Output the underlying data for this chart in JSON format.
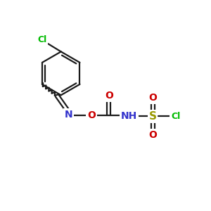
{
  "bg_color": "#ffffff",
  "bond_color": "#1a1a1a",
  "atom_colors": {
    "Cl": "#00bb00",
    "N": "#3333cc",
    "O": "#cc0000",
    "S": "#999900",
    "C": "#1a1a1a",
    "H": "#1a1a1a"
  },
  "figsize": [
    3.0,
    3.0
  ],
  "dpi": 100
}
